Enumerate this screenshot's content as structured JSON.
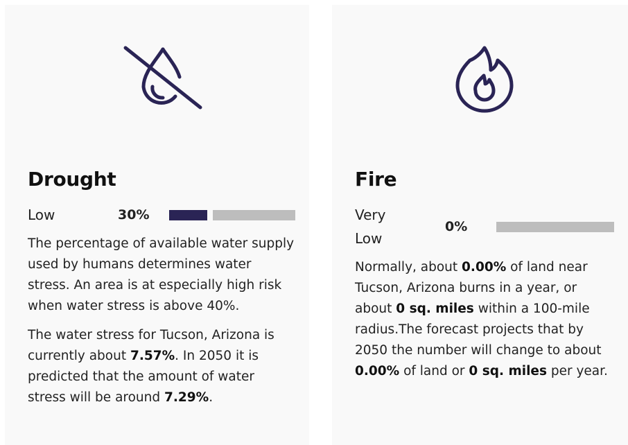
{
  "cards": [
    {
      "title": "Drought",
      "level": "Low",
      "score": {
        "value": 30,
        "label": "30%"
      },
      "paragraphs": [
        [
          "The percentage of available water supply used by humans determines water stress. An area is at especially high risk when water stress is above 40%."
        ],
        [
          "The water stress for Tucson, Arizona is currently about ",
          "7.57%",
          ". In 2050 it is predicted that the amount of water stress will be around ",
          "7.29%",
          "."
        ]
      ]
    },
    {
      "title": "Fire",
      "level": "Very Low",
      "score": {
        "value": 0,
        "label": "0%"
      },
      "paragraphs": [
        [
          "Normally, about ",
          "0.00%",
          " of land near Tucson, Arizona burns in a year, or about ",
          "0 sq. miles",
          " within a 100-mile radius.The forecast projects that by 2050 the number will change to about ",
          "0.00%",
          " of land or ",
          "0 sq. miles",
          " per year."
        ]
      ]
    }
  ]
}
